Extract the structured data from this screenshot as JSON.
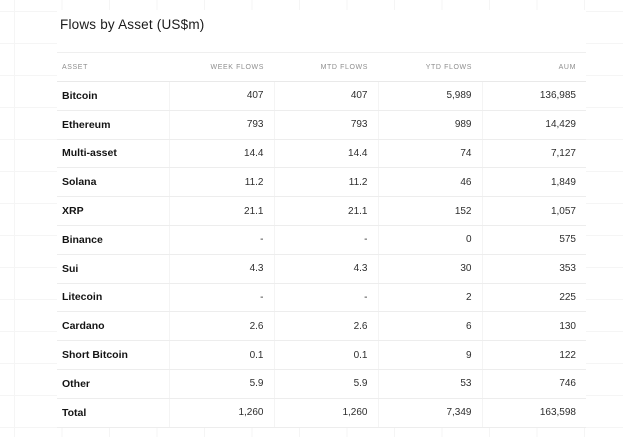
{
  "title": "Flows by Asset (US$m)",
  "chart_data": {
    "type": "table",
    "title": "Flows by Asset (US$m)",
    "columns": [
      "ASSET",
      "WEEK FLOWS",
      "MTD FLOWS",
      "YTD FLOWS",
      "AUM"
    ],
    "rows": [
      {
        "asset": "Bitcoin",
        "week_flows": "407",
        "mtd_flows": "407",
        "ytd_flows": "5,989",
        "aum": "136,985"
      },
      {
        "asset": "Ethereum",
        "week_flows": "793",
        "mtd_flows": "793",
        "ytd_flows": "989",
        "aum": "14,429"
      },
      {
        "asset": "Multi-asset",
        "week_flows": "14.4",
        "mtd_flows": "14.4",
        "ytd_flows": "74",
        "aum": "7,127"
      },
      {
        "asset": "Solana",
        "week_flows": "11.2",
        "mtd_flows": "11.2",
        "ytd_flows": "46",
        "aum": "1,849"
      },
      {
        "asset": "XRP",
        "week_flows": "21.1",
        "mtd_flows": "21.1",
        "ytd_flows": "152",
        "aum": "1,057"
      },
      {
        "asset": "Binance",
        "week_flows": "-",
        "mtd_flows": "-",
        "ytd_flows": "0",
        "aum": "575"
      },
      {
        "asset": "Sui",
        "week_flows": "4.3",
        "mtd_flows": "4.3",
        "ytd_flows": "30",
        "aum": "353"
      },
      {
        "asset": "Litecoin",
        "week_flows": "-",
        "mtd_flows": "-",
        "ytd_flows": "2",
        "aum": "225"
      },
      {
        "asset": "Cardano",
        "week_flows": "2.6",
        "mtd_flows": "2.6",
        "ytd_flows": "6",
        "aum": "130"
      },
      {
        "asset": "Short Bitcoin",
        "week_flows": "0.1",
        "mtd_flows": "0.1",
        "ytd_flows": "9",
        "aum": "122"
      },
      {
        "asset": "Other",
        "week_flows": "5.9",
        "mtd_flows": "5.9",
        "ytd_flows": "53",
        "aum": "746"
      },
      {
        "asset": "Total",
        "week_flows": "1,260",
        "mtd_flows": "1,260",
        "ytd_flows": "7,349",
        "aum": "163,598"
      }
    ]
  },
  "colors": {
    "background": "#ffffff",
    "grid_line": "#f5f5f5",
    "row_divider": "#ededed",
    "column_divider": "#f4f4f4",
    "header_text": "#8e8e8e",
    "title_text": "#1b1b1b",
    "asset_text": "#141414",
    "value_text": "#2e2e2e"
  }
}
